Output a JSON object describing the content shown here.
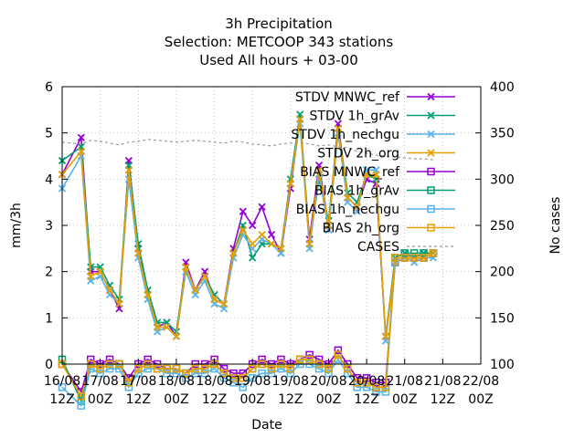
{
  "title_lines": [
    "3h Precipitation",
    "Selection: METCOOP     343 stations",
    "Used  All hours  + 03-00"
  ],
  "chart_data": {
    "type": "line",
    "title": "3h Precipitation",
    "xlabel": "Date",
    "ylabel": "mm/3h",
    "y2label": "No cases",
    "ylim": [
      0,
      6
    ],
    "y2lim": [
      100,
      400
    ],
    "grid": true,
    "legend_position": "top-right",
    "y_ticks": [
      "0",
      "1",
      "2",
      "3",
      "4",
      "5",
      "6"
    ],
    "y2_ticks": [
      "100",
      "150",
      "200",
      "250",
      "300",
      "350",
      "400"
    ],
    "x_ticks": [
      {
        "line1": "16/08",
        "line2": "12Z"
      },
      {
        "line1": "17/08",
        "line2": "00Z"
      },
      {
        "line1": "17/08",
        "line2": "12Z"
      },
      {
        "line1": "18/08",
        "line2": "00Z"
      },
      {
        "line1": "18/08",
        "line2": "12Z"
      },
      {
        "line1": "19/08",
        "line2": "00Z"
      },
      {
        "line1": "19/08",
        "line2": "12Z"
      },
      {
        "line1": "20/08",
        "line2": "00Z"
      },
      {
        "line1": "20/08",
        "line2": "12Z"
      },
      {
        "line1": "21/08",
        "line2": "00Z"
      },
      {
        "line1": "21/08",
        "line2": "12Z"
      },
      {
        "line1": "22/08",
        "line2": "00Z"
      }
    ],
    "x_hours": [
      0,
      6,
      9,
      12,
      15,
      18,
      21,
      24,
      27,
      30,
      33,
      36,
      39,
      42,
      45,
      48,
      51,
      54,
      57,
      60,
      63,
      66,
      69,
      72,
      75,
      78,
      81,
      84,
      87,
      90,
      93,
      96,
      99,
      102,
      105,
      108,
      111,
      114,
      117
    ],
    "series": [
      {
        "name": "STDV MNWC_ref",
        "role": "stdv",
        "color": "#9400d3",
        "marker": "x",
        "values": [
          4.1,
          4.9,
          2.0,
          2.0,
          1.6,
          1.2,
          4.4,
          2.5,
          1.5,
          0.8,
          0.9,
          0.6,
          2.2,
          1.6,
          2.0,
          1.4,
          1.3,
          2.5,
          3.3,
          3.0,
          3.4,
          2.8,
          2.4,
          3.8,
          5.3,
          2.7,
          4.3,
          3.0,
          5.2,
          3.6,
          3.4,
          4.0,
          3.9,
          0.6,
          2.2,
          2.3,
          2.3,
          2.3,
          2.4
        ]
      },
      {
        "name": "STDV 1h_grAv",
        "role": "stdv",
        "color": "#009e73",
        "marker": "x",
        "values": [
          4.4,
          4.7,
          2.1,
          2.1,
          1.7,
          1.4,
          4.3,
          2.6,
          1.6,
          0.9,
          0.9,
          0.7,
          2.1,
          1.6,
          1.9,
          1.5,
          1.3,
          2.4,
          3.0,
          2.3,
          2.6,
          2.6,
          2.5,
          4.0,
          5.4,
          2.6,
          4.0,
          3.1,
          5.1,
          3.7,
          3.5,
          4.1,
          4.0,
          0.6,
          2.3,
          2.4,
          2.3,
          2.4,
          2.4
        ]
      },
      {
        "name": "STDV 1h_nechgu",
        "role": "stdv",
        "color": "#56b4e9",
        "marker": "x",
        "values": [
          3.8,
          4.5,
          1.8,
          1.9,
          1.5,
          1.3,
          4.0,
          2.3,
          1.4,
          0.7,
          0.8,
          0.6,
          2.0,
          1.5,
          1.8,
          1.3,
          1.2,
          2.3,
          2.8,
          2.5,
          2.7,
          2.6,
          2.4,
          3.9,
          5.2,
          2.5,
          4.1,
          2.9,
          5.0,
          3.5,
          3.3,
          4.2,
          4.2,
          0.5,
          2.2,
          2.3,
          2.2,
          2.3,
          2.3
        ]
      },
      {
        "name": "STDV 2h_org",
        "role": "stdv",
        "color": "#e69f00",
        "marker": "x",
        "values": [
          4.1,
          4.6,
          1.9,
          2.0,
          1.6,
          1.3,
          4.2,
          2.4,
          1.5,
          0.8,
          0.8,
          0.6,
          2.1,
          1.6,
          1.9,
          1.4,
          1.3,
          2.4,
          2.9,
          2.6,
          2.8,
          2.6,
          2.5,
          3.9,
          5.3,
          2.6,
          4.2,
          3.0,
          5.1,
          3.6,
          3.4,
          4.1,
          4.1,
          0.6,
          2.2,
          2.3,
          2.3,
          2.3,
          2.4
        ]
      },
      {
        "name": "BIAS MNWC_ref",
        "role": "bias",
        "color": "#9400d3",
        "marker": "square",
        "values": [
          0.0,
          -0.6,
          0.1,
          0.0,
          0.1,
          0.0,
          -0.3,
          0.0,
          0.1,
          0.0,
          -0.1,
          -0.1,
          -0.2,
          0.0,
          0.0,
          0.1,
          -0.1,
          -0.2,
          -0.2,
          0.0,
          0.1,
          0.0,
          0.1,
          0.0,
          0.1,
          0.2,
          0.1,
          0.0,
          0.3,
          0.0,
          -0.3,
          -0.3,
          -0.4,
          -0.4,
          2.2,
          2.3,
          2.3,
          2.3,
          2.4
        ]
      },
      {
        "name": "BIAS 1h_grAv",
        "role": "bias",
        "color": "#009e73",
        "marker": "square",
        "values": [
          0.1,
          -0.8,
          0.0,
          -0.1,
          0.0,
          0.0,
          -0.4,
          -0.1,
          0.0,
          -0.1,
          -0.1,
          -0.1,
          -0.2,
          -0.1,
          -0.1,
          0.0,
          -0.2,
          -0.3,
          -0.3,
          -0.1,
          0.0,
          -0.1,
          0.0,
          -0.1,
          0.1,
          0.1,
          0.0,
          -0.1,
          0.2,
          -0.1,
          -0.4,
          -0.4,
          -0.5,
          -0.5,
          2.3,
          2.4,
          2.4,
          2.4,
          2.4
        ]
      },
      {
        "name": "BIAS 1h_nechgu",
        "role": "bias",
        "color": "#56b4e9",
        "marker": "square",
        "values": [
          -0.5,
          -0.9,
          -0.1,
          -0.2,
          -0.1,
          -0.1,
          -0.5,
          -0.2,
          -0.1,
          -0.1,
          -0.2,
          -0.2,
          -0.3,
          -0.2,
          -0.2,
          -0.1,
          -0.3,
          -0.4,
          -0.5,
          -0.3,
          -0.2,
          -0.2,
          -0.1,
          -0.2,
          0.0,
          0.0,
          -0.1,
          -0.2,
          0.1,
          -0.2,
          -0.5,
          -0.5,
          -0.6,
          -0.6,
          2.2,
          2.3,
          2.3,
          2.3,
          2.4
        ]
      },
      {
        "name": "BIAS 2h_org",
        "role": "bias",
        "color": "#e69f00",
        "marker": "square",
        "values": [
          0.0,
          -0.7,
          0.0,
          -0.1,
          0.0,
          0.0,
          -0.4,
          -0.1,
          0.0,
          -0.1,
          -0.1,
          -0.1,
          -0.2,
          -0.1,
          -0.1,
          0.0,
          -0.2,
          -0.3,
          -0.3,
          -0.1,
          0.0,
          -0.1,
          0.0,
          -0.1,
          0.1,
          0.1,
          0.0,
          -0.1,
          0.2,
          -0.1,
          -0.4,
          -0.4,
          -0.5,
          -0.5,
          2.3,
          2.3,
          2.3,
          2.3,
          2.4
        ]
      },
      {
        "name": "CASES",
        "role": "cases",
        "color": "#999999",
        "marker": "none",
        "axis": "y2",
        "values": [
          340,
          338,
          342,
          341,
          339,
          337,
          340,
          341,
          343,
          342,
          341,
          340,
          341,
          342,
          341,
          340,
          339,
          341,
          340,
          338,
          337,
          336,
          338,
          339,
          340,
          338,
          336,
          337,
          335,
          334,
          330,
          328,
          326,
          325,
          324,
          323,
          322,
          322,
          321
        ]
      }
    ]
  }
}
